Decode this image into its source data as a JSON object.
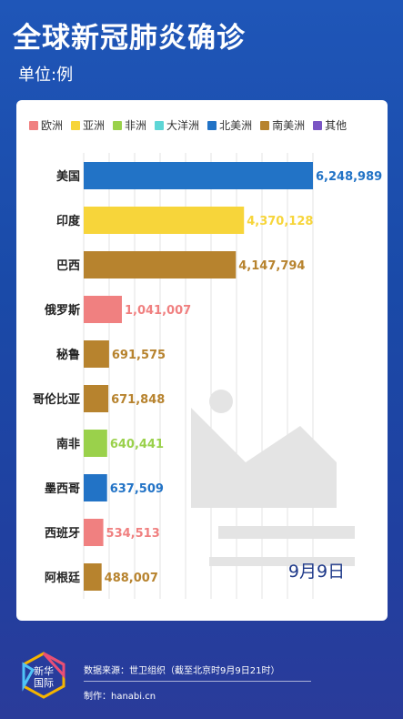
{
  "header": {
    "title": "全球新冠肺炎确诊",
    "unit": "单位:例"
  },
  "legend": [
    {
      "label": "欧洲",
      "color": "#f08080"
    },
    {
      "label": "亚洲",
      "color": "#f7d53a"
    },
    {
      "label": "非洲",
      "color": "#9ad14b"
    },
    {
      "label": "大洋洲",
      "color": "#5ed6d6"
    },
    {
      "label": "北美洲",
      "color": "#2273c6"
    },
    {
      "label": "南美洲",
      "color": "#b7832e"
    },
    {
      "label": "其他",
      "color": "#7a55c4"
    }
  ],
  "chart_data": {
    "type": "bar",
    "orientation": "horizontal",
    "categories": [
      "美国",
      "印度",
      "巴西",
      "俄罗斯",
      "秘鲁",
      "哥伦比亚",
      "南非",
      "墨西哥",
      "西班牙",
      "阿根廷"
    ],
    "values": [
      6248989,
      4370128,
      4147794,
      1041007,
      691575,
      671848,
      640441,
      637509,
      534513,
      488007
    ],
    "value_labels": [
      "6,248,989",
      "4,370,128",
      "4,147,794",
      "1,041,007",
      "691,575",
      "671,848",
      "640,441",
      "637,509",
      "534,513",
      "488,007"
    ],
    "regions": [
      "北美洲",
      "亚洲",
      "南美洲",
      "欧洲",
      "南美洲",
      "南美洲",
      "非洲",
      "北美洲",
      "欧洲",
      "南美洲"
    ],
    "annotation": "9月9日",
    "grid": true,
    "legend_position": "top"
  },
  "footer": {
    "logo_line1": "新华",
    "logo_line2": "国际",
    "source": "数据来源：世卫组织（截至北京时9月9日21时）",
    "credit": "制作：hanabi.cn"
  }
}
